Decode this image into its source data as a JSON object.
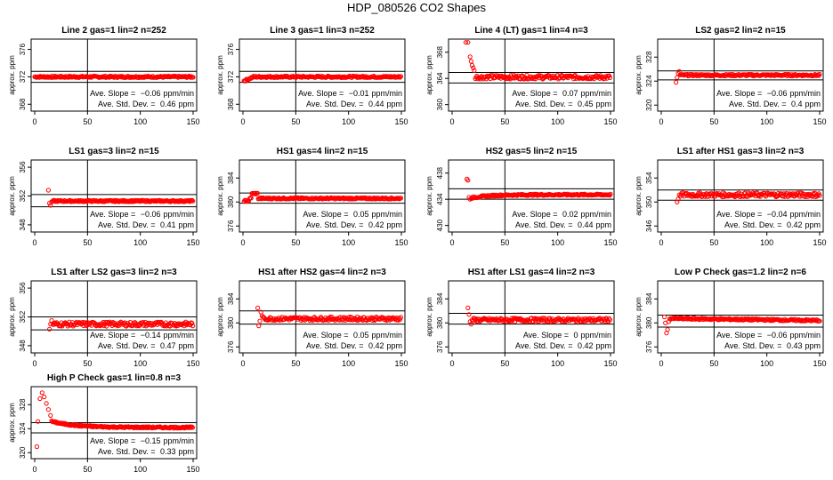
{
  "title": "HDP_080526  CO2 Shapes",
  "colors": {
    "points": "#ff0000",
    "axis": "#000000"
  },
  "chart_data": [
    {
      "type": "scatter",
      "title": "Line 2 gas=1 lin=2 n=252",
      "ylabel": "approx. ppm",
      "xlim": [
        0,
        150
      ],
      "ylim": [
        367,
        377.5
      ],
      "xticks": [
        0,
        50,
        100,
        150
      ],
      "yticks": [
        368,
        372,
        376
      ],
      "hlines": [
        371.2,
        372.8
      ],
      "vline": 50,
      "slope_label": "Ave. Slope = ",
      "slope": "−0.06",
      "slope_unit": "ppm/min",
      "sd_label": "Ave. Std. Dev. = ",
      "sd": "0.46",
      "sd_unit": "ppm",
      "x_start": 0,
      "base": 372,
      "noise": 0.12,
      "trend": "flat",
      "early": []
    },
    {
      "type": "scatter",
      "title": "Line 3 gas=1 lin=3 n=252",
      "ylabel": "approx. ppm",
      "xlim": [
        0,
        150
      ],
      "ylim": [
        367,
        377.5
      ],
      "xticks": [
        0,
        50,
        100,
        150
      ],
      "yticks": [
        368,
        372,
        376
      ],
      "hlines": [
        371.2,
        372.8
      ],
      "vline": 50,
      "slope_label": "Ave. Slope = ",
      "slope": "−0.01",
      "slope_unit": "ppm/min",
      "sd_label": "Ave. Std. Dev. = ",
      "sd": "0.44",
      "sd_unit": "ppm",
      "x_start": 1,
      "base": 372,
      "noise": 0.12,
      "trend": "dip",
      "early": []
    },
    {
      "type": "scatter",
      "title": "Line 4 (LT) gas=1 lin=4 n=3",
      "ylabel": "approx. ppm",
      "xlim": [
        0,
        150
      ],
      "ylim": [
        359,
        370
      ],
      "xticks": [
        0,
        50,
        100,
        150
      ],
      "yticks": [
        360,
        364,
        368
      ],
      "hlines": [
        363.3,
        364.9
      ],
      "vline": 50,
      "slope_label": "Ave. Slope = ",
      "slope": "0.07",
      "slope_unit": "ppm/min",
      "sd_label": "Ave. Std. Dev. = ",
      "sd": "0.45",
      "sd_unit": "ppm",
      "x_start": 22,
      "base": 364.2,
      "noise": 0.3,
      "trend": "flat",
      "early": [
        [
          13,
          369.5
        ],
        [
          15,
          369.5
        ],
        [
          17,
          367.3
        ],
        [
          18,
          366.6
        ],
        [
          19,
          366.0
        ],
        [
          20,
          365.6
        ],
        [
          21,
          365.2
        ]
      ]
    },
    {
      "type": "scatter",
      "title": "LS2 gas=2 lin=2 n=15",
      "ylabel": "approx. ppm",
      "xlim": [
        0,
        150
      ],
      "ylim": [
        319,
        331
      ],
      "xticks": [
        0,
        50,
        100,
        150
      ],
      "yticks": [
        320,
        324,
        328
      ],
      "hlines": [
        324.2,
        325.7
      ],
      "vline": 50,
      "slope_label": "Ave. Slope = ",
      "slope": "−0.06",
      "slope_unit": "ppm/min",
      "sd_label": "Ave. Std. Dev. = ",
      "sd": "0.4",
      "sd_unit": "ppm",
      "x_start": 18,
      "base": 325.0,
      "noise": 0.15,
      "trend": "flat",
      "early": [
        [
          14,
          323.8
        ],
        [
          15,
          324.6
        ],
        [
          16,
          325.3
        ],
        [
          17,
          325.6
        ]
      ]
    },
    {
      "type": "scatter",
      "title": "LS1 gas=3 lin=2 n=15",
      "ylabel": "approx. ppm",
      "xlim": [
        0,
        150
      ],
      "ylim": [
        347,
        357
      ],
      "xticks": [
        0,
        50,
        100,
        150
      ],
      "yticks": [
        348,
        352,
        356
      ],
      "hlines": [
        350.5,
        352.2
      ],
      "vline": 50,
      "slope_label": "Ave. Slope = ",
      "slope": "−0.06",
      "slope_unit": "ppm/min",
      "sd_label": "Ave. Std. Dev. = ",
      "sd": "0.41",
      "sd_unit": "ppm",
      "x_start": 17,
      "base": 351.3,
      "noise": 0.1,
      "trend": "flat",
      "early": [
        [
          13,
          352.8
        ],
        [
          14,
          351.0
        ],
        [
          15,
          350.7
        ],
        [
          16,
          351.2
        ]
      ]
    },
    {
      "type": "scatter",
      "title": "HS1 gas=4 lin=2 n=15",
      "ylabel": "approx. ppm",
      "xlim": [
        0,
        150
      ],
      "ylim": [
        375,
        387
      ],
      "xticks": [
        0,
        50,
        100,
        150
      ],
      "yticks": [
        376,
        380,
        384
      ],
      "hlines": [
        379.8,
        381.5
      ],
      "vline": 50,
      "slope_label": "Ave. Slope = ",
      "slope": "0.05",
      "slope_unit": "ppm/min",
      "sd_label": "Ave. Std. Dev. = ",
      "sd": "0.42",
      "sd_unit": "ppm",
      "x_start": 1,
      "base": 380.6,
      "noise": 0.12,
      "trend": "bump",
      "early": []
    },
    {
      "type": "scatter",
      "title": "HS2 gas=5 lin=2 n=15",
      "ylabel": "approx. ppm",
      "xlim": [
        0,
        150
      ],
      "ylim": [
        429,
        440
      ],
      "xticks": [
        0,
        50,
        100,
        150
      ],
      "yticks": [
        430,
        434,
        438
      ],
      "hlines": [
        434.0,
        435.6
      ],
      "vline": 50,
      "slope_label": "Ave. Slope = ",
      "slope": "0.02",
      "slope_unit": "ppm/min",
      "sd_label": "Ave. Std. Dev. = ",
      "sd": "0.44",
      "sd_unit": "ppm",
      "x_start": 18,
      "base": 434.7,
      "noise": 0.12,
      "trend": "rise",
      "early": [
        [
          14,
          437.1
        ],
        [
          15,
          436.9
        ],
        [
          16,
          434.3
        ],
        [
          17,
          434.0
        ]
      ]
    },
    {
      "type": "scatter",
      "title": "LS1 after HS1 gas=3 lin=2 n=3",
      "ylabel": "approx. ppm",
      "xlim": [
        0,
        150
      ],
      "ylim": [
        345,
        357
      ],
      "xticks": [
        0,
        50,
        100,
        150
      ],
      "yticks": [
        346,
        350,
        354
      ],
      "hlines": [
        350.3,
        352.0
      ],
      "vline": 50,
      "slope_label": "Ave. Slope = ",
      "slope": "−0.04",
      "slope_unit": "ppm/min",
      "sd_label": "Ave. Std. Dev. = ",
      "sd": "0.42",
      "sd_unit": "ppm",
      "x_start": 18,
      "base": 351.2,
      "noise": 0.35,
      "trend": "flat",
      "early": [
        [
          15,
          350.0
        ],
        [
          16,
          350.5
        ],
        [
          17,
          351.2
        ]
      ]
    },
    {
      "type": "scatter",
      "title": "LS1 after LS2 gas=3 lin=2 n=3",
      "ylabel": "approx. ppm",
      "xlim": [
        0,
        150
      ],
      "ylim": [
        347,
        357
      ],
      "xticks": [
        0,
        50,
        100,
        150
      ],
      "yticks": [
        348,
        352,
        356
      ],
      "hlines": [
        350.2,
        352.0
      ],
      "vline": 50,
      "slope_label": "Ave. Slope = ",
      "slope": "−0.14",
      "slope_unit": "ppm/min",
      "sd_label": "Ave. Std. Dev. = ",
      "sd": "0.47",
      "sd_unit": "ppm",
      "x_start": 17,
      "base": 351.0,
      "noise": 0.3,
      "trend": "flat",
      "early": [
        [
          14,
          350.3
        ],
        [
          15,
          351.0
        ],
        [
          16,
          351.5
        ]
      ]
    },
    {
      "type": "scatter",
      "title": "HS1 after HS2 gas=4 lin=2 n=3",
      "ylabel": "approx. ppm",
      "xlim": [
        0,
        150
      ],
      "ylim": [
        375,
        387
      ],
      "xticks": [
        0,
        50,
        100,
        150
      ],
      "yticks": [
        376,
        380,
        384
      ],
      "hlines": [
        379.8,
        382.0
      ],
      "vline": 50,
      "slope_label": "Ave. Slope = ",
      "slope": "0.05",
      "slope_unit": "ppm/min",
      "sd_label": "Ave. Std. Dev. = ",
      "sd": "0.42",
      "sd_unit": "ppm",
      "x_start": 19,
      "base": 380.7,
      "noise": 0.3,
      "trend": "flat",
      "early": [
        [
          14,
          382.5
        ],
        [
          15,
          379.5
        ],
        [
          16,
          380.3
        ],
        [
          17,
          381.8
        ],
        [
          18,
          381.2
        ]
      ]
    },
    {
      "type": "scatter",
      "title": "HS1 after LS1 gas=4 lin=2 n=3",
      "ylabel": "approx. ppm",
      "xlim": [
        0,
        150
      ],
      "ylim": [
        375,
        387
      ],
      "xticks": [
        0,
        50,
        100,
        150
      ],
      "yticks": [
        376,
        380,
        384
      ],
      "hlines": [
        379.8,
        381.6
      ],
      "vline": 50,
      "slope_label": "Ave. Slope = ",
      "slope": "0",
      "slope_unit": "ppm/min",
      "sd_label": "Ave. Std. Dev. = ",
      "sd": "0.42",
      "sd_unit": "ppm",
      "x_start": 19,
      "base": 380.5,
      "noise": 0.3,
      "trend": "flat",
      "early": [
        [
          15,
          382.5
        ],
        [
          16,
          381.4
        ],
        [
          17,
          380.2
        ],
        [
          18,
          379.8
        ]
      ]
    },
    {
      "type": "scatter",
      "title": "Low P Check gas=1.2 lin=2 n=6",
      "ylabel": "approx. ppm",
      "xlim": [
        0,
        150
      ],
      "ylim": [
        375,
        387
      ],
      "xticks": [
        0,
        50,
        100,
        150
      ],
      "yticks": [
        376,
        380,
        384
      ],
      "hlines": [
        379.3,
        381.3
      ],
      "vline": 50,
      "slope_label": "Ave. Slope = ",
      "slope": "−0.06",
      "slope_unit": "ppm/min",
      "sd_label": "Ave. Std. Dev. = ",
      "sd": "0.43",
      "sd_unit": "ppm",
      "x_start": 9,
      "base": 380.4,
      "noise": 0.15,
      "trend": "decline",
      "early": [
        [
          3,
          381.0
        ],
        [
          4,
          380.0
        ],
        [
          5,
          378.3
        ],
        [
          6,
          378.9
        ],
        [
          7,
          380.2
        ],
        [
          8,
          380.7
        ]
      ]
    },
    {
      "type": "scatter",
      "title": "High P Check gas=1 lin=0.8 n=3",
      "ylabel": "approx. ppm",
      "xlim": [
        0,
        150
      ],
      "ylim": [
        319,
        331
      ],
      "xticks": [
        0,
        50,
        100,
        150
      ],
      "yticks": [
        320,
        324,
        328
      ],
      "hlines": [
        323.3,
        325.0
      ],
      "vline": 50,
      "slope_label": "Ave. Slope = ",
      "slope": "−0.15",
      "slope_unit": "ppm/min",
      "sd_label": "Ave. Std. Dev. = ",
      "sd": "0.33",
      "sd_unit": "ppm",
      "x_start": 16,
      "base": 324.2,
      "noise": 0.12,
      "trend": "decay",
      "early": [
        [
          2,
          321.0
        ],
        [
          3,
          325.2
        ],
        [
          5,
          329.0
        ],
        [
          7,
          330.0
        ],
        [
          9,
          329.3
        ],
        [
          11,
          328.2
        ],
        [
          13,
          327.2
        ],
        [
          15,
          326.2
        ]
      ]
    }
  ]
}
